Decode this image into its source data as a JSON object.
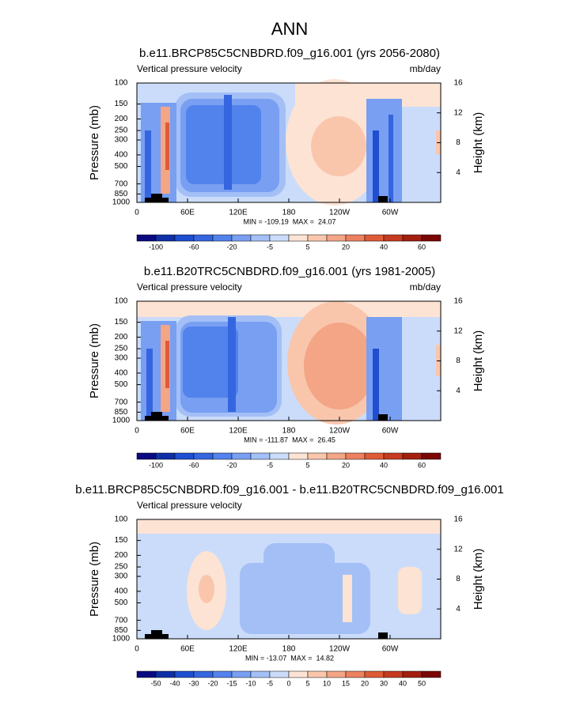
{
  "title": "ANN",
  "axes": {
    "y_label": "Pressure (mb)",
    "y2_label": "Height (km)",
    "ylim": [
      1000,
      100
    ],
    "y_log": true,
    "yticks": [
      100,
      150,
      200,
      250,
      300,
      400,
      500,
      700,
      850,
      1000
    ],
    "y2lim": [
      0,
      16
    ],
    "y2ticks": [
      16,
      12,
      8,
      4
    ],
    "xlim": [
      0,
      360
    ],
    "xticks": [
      0,
      {
        "value": 60,
        "label": "60E"
      },
      {
        "value": 120,
        "label": "120E"
      },
      180,
      {
        "value": 240,
        "label": "120W"
      },
      {
        "value": 300,
        "label": "60W"
      }
    ]
  },
  "colors": [
    "#0a0a80",
    "#0f2fa8",
    "#1f4fd0",
    "#3566e0",
    "#5283ec",
    "#789ff2",
    "#a3bff6",
    "#cadcfa",
    "#fde3d3",
    "#f9c6ac",
    "#f3a585",
    "#ec8160",
    "#de5b38",
    "#c63a1f",
    "#a31f10",
    "#7a0606"
  ],
  "panels": [
    {
      "title": "b.e11.BRCP85C5CNBDRD.f09_g16.001 (yrs 2056-2080)",
      "left_label": "Vertical pressure velocity",
      "right_label": "mb/day",
      "stats": "MIN = -109.19  MAX =  24.07",
      "levels": [
        -100,
        null,
        -60,
        null,
        -20,
        null,
        -5,
        null,
        5,
        null,
        20,
        null,
        40,
        null,
        60
      ]
    },
    {
      "title": "b.e11.B20TRC5CNBDRD.f09_g16.001 (yrs 1981-2005)",
      "left_label": "Vertical pressure velocity",
      "right_label": "mb/day",
      "stats": "MIN = -111.87  MAX =  26.45",
      "levels": [
        -100,
        null,
        -60,
        null,
        -20,
        null,
        -5,
        null,
        5,
        null,
        20,
        null,
        40,
        null,
        60
      ]
    },
    {
      "title": "b.e11.BRCP85C5CNBDRD.f09_g16.001 - b.e11.B20TRC5CNBDRD.f09_g16.001",
      "left_label": "Vertical pressure velocity",
      "stats": "MIN = -13.07  MAX =  14.82",
      "levels": [
        -50,
        -40,
        -30,
        -20,
        -15,
        -10,
        -5,
        0,
        5,
        10,
        15,
        20,
        30,
        40,
        50
      ]
    }
  ]
}
